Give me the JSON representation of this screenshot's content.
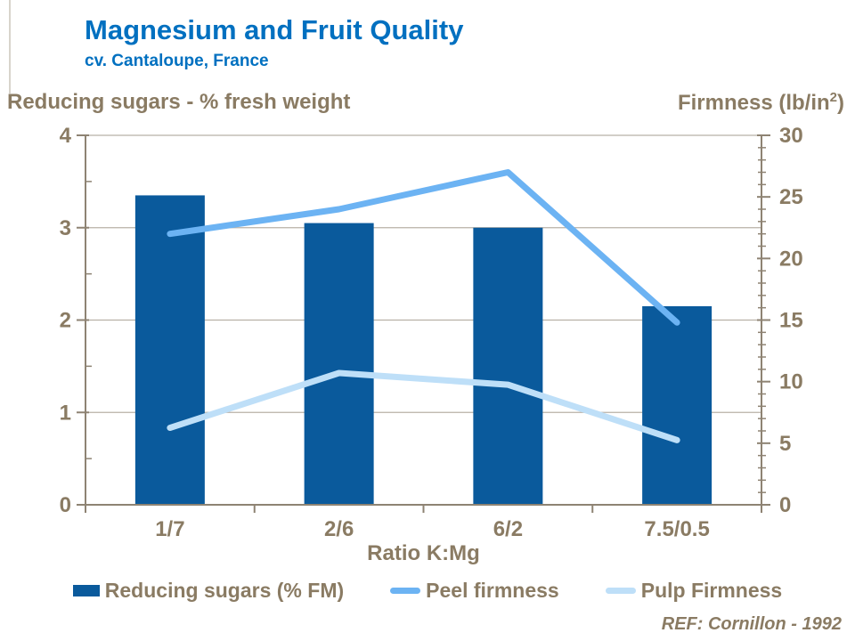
{
  "header": {
    "title": "Magnesium and Fruit Quality",
    "subtitle": "cv. Cantaloupe, France"
  },
  "footer": {
    "ref": "REF: Cornillon - 1992"
  },
  "colors": {
    "title_blue": "#0070C0",
    "text_brown": "#8A7B63",
    "axis_line": "#8E8373",
    "gridline": "#B8B1A6",
    "bar_blue": "#0A5A9C",
    "peel_line_blue": "#6CB3F3",
    "pulp_line_blue": "#BEDFF8"
  },
  "chart_data": {
    "type": "bar+line combo",
    "categories": [
      "1/7",
      "2/6",
      "6/2",
      "7.5/0.5"
    ],
    "xlabel": "Ratio K:Mg",
    "grid": "horizontal gridlines at left-axis integers",
    "legend_position": "bottom",
    "left_axis": {
      "title": "Reducing sugars - % fresh weight",
      "min": 0,
      "max": 4,
      "major_ticks": [
        0,
        1,
        2,
        3,
        4
      ],
      "minor_tick_step": 0.5
    },
    "right_axis": {
      "title_pre": "Firmness (lb/in",
      "title_sup": "2",
      "title_post": ")",
      "min": 0,
      "max": 30,
      "major_ticks": [
        0,
        5,
        10,
        15,
        20,
        25,
        30
      ],
      "minor_tick_step": 1
    },
    "series": [
      {
        "name": "Reducing sugars (% FM)",
        "type": "bar",
        "axis": "left",
        "color": "#0A5A9C",
        "values": [
          3.35,
          3.05,
          3.0,
          2.15
        ]
      },
      {
        "name": "Peel firmness",
        "type": "line",
        "axis": "right",
        "color": "#6CB3F3",
        "values": [
          22,
          24,
          27,
          14.8
        ]
      },
      {
        "name": "Pulp Firmness",
        "type": "line",
        "axis": "right",
        "color": "#BEDFF8",
        "values": [
          6.25,
          10.7,
          9.75,
          5.25
        ]
      }
    ]
  }
}
